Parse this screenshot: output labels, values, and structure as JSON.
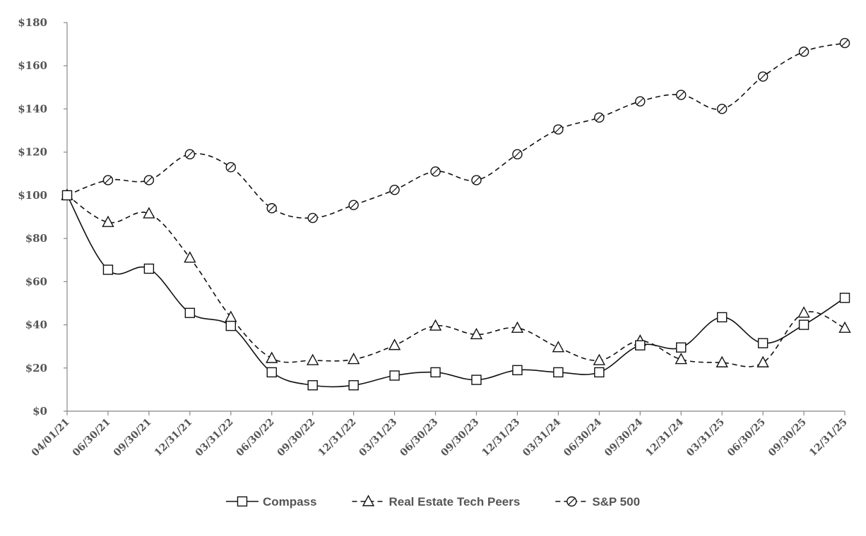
{
  "chart_data": {
    "type": "line",
    "title": "",
    "xlabel": "",
    "ylabel": "",
    "ylim": [
      0,
      180
    ],
    "y_tick_values": [
      0,
      20,
      40,
      60,
      80,
      100,
      120,
      140,
      160,
      180
    ],
    "y_tick_labels": [
      "$0",
      "$20",
      "$40",
      "$60",
      "$80",
      "$100",
      "$120",
      "$140",
      "$160",
      "$180"
    ],
    "categories": [
      "04/01/21",
      "06/30/21",
      "09/30/21",
      "12/31/21",
      "03/31/22",
      "06/30/22",
      "09/30/22",
      "12/31/22",
      "03/31/23",
      "06/30/23",
      "09/30/23",
      "12/31/23",
      "03/31/24",
      "06/30/24",
      "09/30/24",
      "12/31/24",
      "03/31/25",
      "06/30/25",
      "09/30/25",
      "12/31/25"
    ],
    "grid": false,
    "legend_position": "bottom",
    "series": [
      {
        "name": "Compass",
        "line_style": "solid",
        "marker": "square",
        "values": [
          100,
          65.5,
          66,
          45.5,
          39.5,
          18,
          12,
          12,
          16.5,
          18,
          14.5,
          19,
          18,
          18,
          30.5,
          29.5,
          43.5,
          31.5,
          40,
          52.5
        ]
      },
      {
        "name": "Real Estate Tech Peers",
        "line_style": "dashed",
        "marker": "triangle",
        "values": [
          100,
          87.5,
          91.5,
          71,
          43.5,
          24.5,
          23.5,
          24,
          30.5,
          39.5,
          35.5,
          38.5,
          29.5,
          23.5,
          32.5,
          24,
          22.5,
          22.5,
          45.5,
          38.5
        ]
      },
      {
        "name": "S&P 500",
        "line_style": "dashed",
        "marker": "circle",
        "values": [
          100,
          107,
          107,
          119,
          113,
          94,
          89.5,
          95.5,
          102.5,
          111,
          107,
          119,
          130.5,
          136,
          143.5,
          146.5,
          140,
          155,
          166.5,
          170.5
        ]
      }
    ]
  }
}
